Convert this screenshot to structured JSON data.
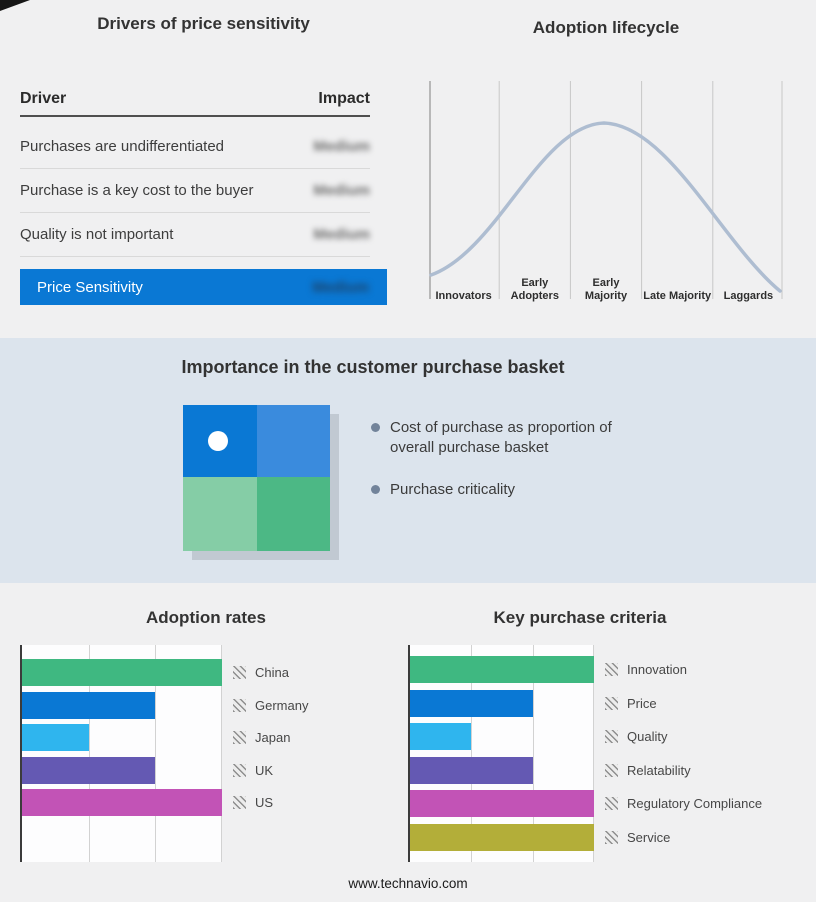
{
  "page": {
    "footer_url": "www.technavio.com"
  },
  "drivers": {
    "title": "Drivers of price sensitivity",
    "columns": {
      "driver": "Driver",
      "impact": "Impact"
    },
    "impact_values_blurred": true,
    "rows": [
      {
        "driver": "Purchases are undifferentiated",
        "impact": "Medium"
      },
      {
        "driver": "Purchase is a key cost to the buyer",
        "impact": "Medium"
      },
      {
        "driver": "Quality is not important",
        "impact": "Medium"
      }
    ],
    "summary": {
      "label": "Price Sensitivity",
      "impact": "Medium",
      "bar_color": "#0a78d4"
    }
  },
  "basket": {
    "title": "Importance in the customer purchase basket",
    "bullets": [
      "Cost of purchase as proportion of overall purchase basket",
      "Purchase criticality"
    ],
    "matrix": {
      "top_left": "#0a78d4",
      "top_right": "#3a8bdd",
      "bottom_left": "#85cda6",
      "bottom_right": "#4cb885"
    }
  },
  "chart_data": [
    {
      "type": "line",
      "title": "Adoption lifecycle",
      "categories": [
        "Innovators",
        "Early Adopters",
        "Early Majority",
        "Late Majority",
        "Laggards"
      ],
      "description": "Bell-shaped adoption curve peaking over Early Majority",
      "x_normalized": [
        0.1,
        0.3,
        0.5,
        0.7,
        0.9
      ],
      "y_normalized": [
        0.35,
        0.84,
        1.0,
        0.75,
        0.22
      ],
      "line_color": "#aebdd1",
      "grid": "vertical stage boundaries",
      "axis_value_labels_shown": false
    },
    {
      "type": "bar",
      "title": "Adoption rates",
      "orientation": "horizontal",
      "categories": [
        "China",
        "Germany",
        "Japan",
        "UK",
        "US"
      ],
      "values": [
        3,
        2,
        1,
        2,
        3
      ],
      "xlim": [
        0,
        3
      ],
      "value_labels_shown": false,
      "colors": [
        "#3fb881",
        "#0a78d4",
        "#2fb5ee",
        "#6459b3",
        "#c253b6"
      ],
      "grid": true,
      "legend_position": "right"
    },
    {
      "type": "bar",
      "title": "Key purchase criteria",
      "orientation": "horizontal",
      "categories": [
        "Innovation",
        "Price",
        "Quality",
        "Relatability",
        "Regulatory Compliance",
        "Service"
      ],
      "values": [
        3,
        2,
        1,
        2,
        3,
        3
      ],
      "xlim": [
        0,
        3
      ],
      "value_labels_shown": false,
      "colors": [
        "#3fb881",
        "#0a78d4",
        "#2fb5ee",
        "#6459b3",
        "#c253b6",
        "#b3ae39"
      ],
      "grid": true,
      "legend_position": "right"
    }
  ]
}
